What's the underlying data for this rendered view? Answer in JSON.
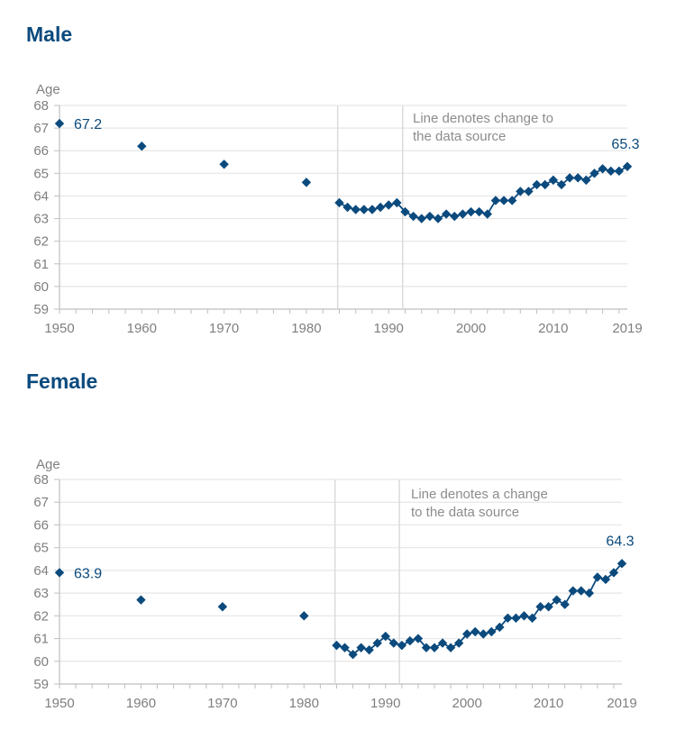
{
  "colors": {
    "title": "#0b4a7d",
    "series": "#0b4a7d",
    "grid": "#e6e6e6",
    "axis": "#bfbfbf",
    "tick_text": "#7f7f7f",
    "annotation_text": "#8c8c8c",
    "divider": "#d9d9d9"
  },
  "chart_data": [
    {
      "type": "line",
      "title": "Male",
      "xlabel": "",
      "ylabel": "Age",
      "xlim": [
        1950,
        2019
      ],
      "ylim": [
        59,
        68
      ],
      "grid": true,
      "yticks": [
        "68",
        "67",
        "66",
        "65",
        "64",
        "63",
        "62",
        "61",
        "60",
        "59"
      ],
      "xticks": [
        "1950",
        "1960",
        "1970",
        "1980",
        "1990",
        "2000",
        "2010",
        "2019"
      ],
      "annotation": {
        "lines": [
          "Line denotes change to",
          "the data source"
        ],
        "divider_years": [
          1983.8,
          1991.7
        ]
      },
      "isolated_points": {
        "x": [
          1950,
          1960,
          1970,
          1980
        ],
        "y": [
          67.2,
          66.2,
          65.4,
          64.6
        ]
      },
      "series": [
        {
          "name": "Male",
          "x": [
            1984,
            1985,
            1986,
            1987,
            1988,
            1989,
            1990,
            1991,
            1992,
            1993,
            1994,
            1995,
            1996,
            1997,
            1998,
            1999,
            2000,
            2001,
            2002,
            2003,
            2004,
            2005,
            2006,
            2007,
            2008,
            2009,
            2010,
            2011,
            2012,
            2013,
            2014,
            2015,
            2016,
            2017,
            2018,
            2019
          ],
          "values": [
            63.7,
            63.5,
            63.4,
            63.4,
            63.4,
            63.5,
            63.6,
            63.7,
            63.3,
            63.1,
            63.0,
            63.1,
            63.0,
            63.2,
            63.1,
            63.2,
            63.3,
            63.3,
            63.2,
            63.8,
            63.8,
            63.8,
            64.2,
            64.2,
            64.5,
            64.5,
            64.7,
            64.5,
            64.8,
            64.8,
            64.7,
            65.0,
            65.2,
            65.1,
            65.1,
            65.3
          ]
        }
      ],
      "data_labels": [
        {
          "x": 1950,
          "y": 67.2,
          "text": "67.2"
        },
        {
          "x": 2019,
          "y": 65.3,
          "text": "65.3"
        }
      ]
    },
    {
      "type": "line",
      "title": "Female",
      "xlabel": "",
      "ylabel": "Age",
      "xlim": [
        1950,
        2019
      ],
      "ylim": [
        59,
        68
      ],
      "grid": true,
      "yticks": [
        "68",
        "67",
        "66",
        "65",
        "64",
        "63",
        "62",
        "61",
        "60",
        "59"
      ],
      "xticks": [
        "1950",
        "1960",
        "1970",
        "1980",
        "1990",
        "2000",
        "2010",
        "2019"
      ],
      "annotation": {
        "lines": [
          "Line denotes a change",
          "to the data source"
        ],
        "divider_years": [
          1983.8,
          1991.7
        ]
      },
      "isolated_points": {
        "x": [
          1950,
          1960,
          1970,
          1980
        ],
        "y": [
          63.9,
          62.7,
          62.4,
          62.0
        ]
      },
      "series": [
        {
          "name": "Female",
          "x": [
            1984,
            1985,
            1986,
            1987,
            1988,
            1989,
            1990,
            1991,
            1992,
            1993,
            1994,
            1995,
            1996,
            1997,
            1998,
            1999,
            2000,
            2001,
            2002,
            2003,
            2004,
            2005,
            2006,
            2007,
            2008,
            2009,
            2010,
            2011,
            2012,
            2013,
            2014,
            2015,
            2016,
            2017,
            2018,
            2019
          ],
          "values": [
            60.7,
            60.6,
            60.3,
            60.6,
            60.5,
            60.8,
            61.1,
            60.8,
            60.7,
            60.9,
            61.0,
            60.6,
            60.6,
            60.8,
            60.6,
            60.8,
            61.2,
            61.3,
            61.2,
            61.3,
            61.5,
            61.9,
            61.9,
            62.0,
            61.9,
            62.4,
            62.4,
            62.7,
            62.5,
            63.1,
            63.1,
            63.0,
            63.7,
            63.6,
            63.9,
            64.3
          ]
        }
      ],
      "data_labels": [
        {
          "x": 1950,
          "y": 63.9,
          "text": "63.9"
        },
        {
          "x": 2019,
          "y": 64.3,
          "text": "64.3"
        }
      ]
    }
  ]
}
